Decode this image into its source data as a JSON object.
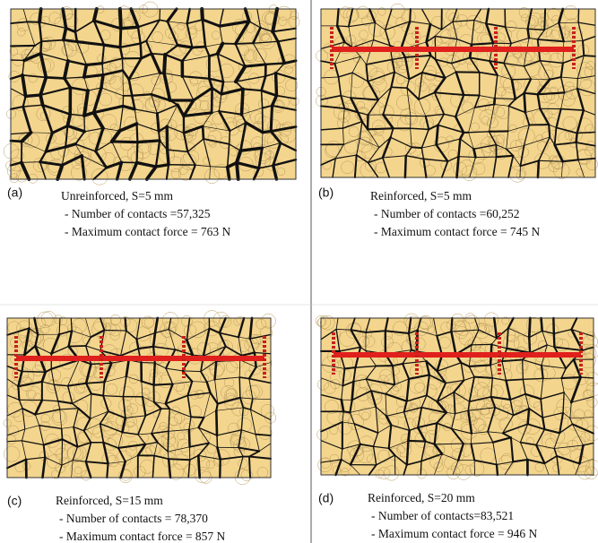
{
  "panels": [
    {
      "label": "(a)",
      "title": "Unreinforced, S=5 mm",
      "contacts": "- Number of contacts =57,325",
      "force": "- Maximum contact force = 763 N"
    },
    {
      "label": "(b)",
      "title": "Reinforced, S=5 mm",
      "contacts": "- Number of contacts =60,252",
      "force": "- Maximum contact force = 745 N"
    },
    {
      "label": "(c)",
      "title": "Reinforced, S=15 mm",
      "contacts": "- Number of contacts = 78,370",
      "force": "- Maximum contact force = 857 N"
    },
    {
      "label": "(d)",
      "title": "Reinforced, S=20 mm",
      "contacts": "- Number of contacts=83,521",
      "force": "- Maximum contact force = 946 N"
    }
  ]
}
